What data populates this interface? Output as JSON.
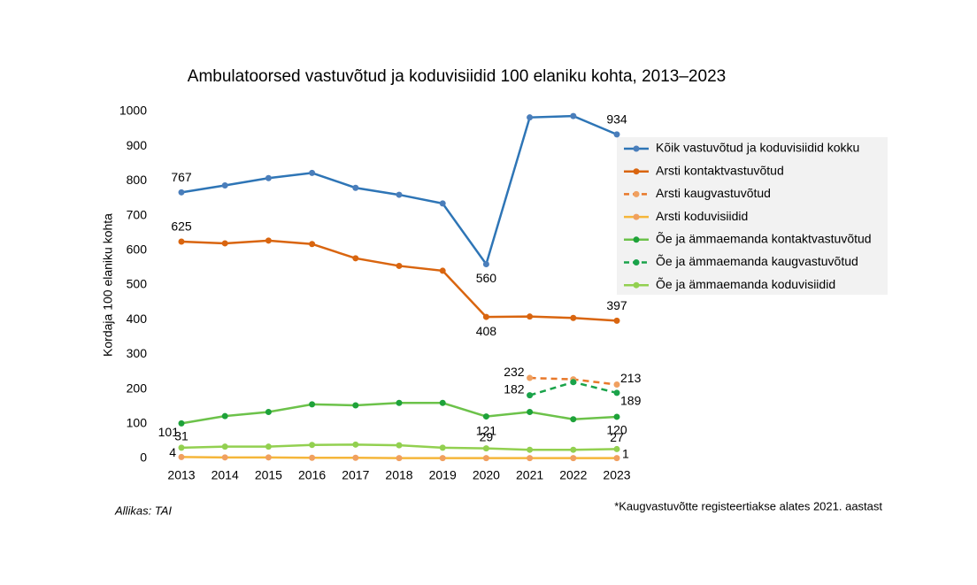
{
  "chart_data": {
    "type": "line",
    "title": "Ambulatoorsed vastuvõtud ja koduvisiidid 100 elaniku kohta, 2013–2023",
    "y_label": "Kordaja 100 elaniku kohta",
    "source": "Allikas: TAI",
    "footnote": "*Kaugvastuvõtte registeertiakse alates 2021. aastast",
    "categories": [
      "2013",
      "2014",
      "2015",
      "2016",
      "2017",
      "2018",
      "2019",
      "2020",
      "2021",
      "2022",
      "2023"
    ],
    "ylim": [
      0,
      1000
    ],
    "yticks": [
      0,
      100,
      200,
      300,
      400,
      500,
      600,
      700,
      800,
      900,
      1000
    ],
    "grid": false,
    "legend": "right",
    "series": [
      {
        "name": "Kõik vastuvõtud ja koduvisiidid kokku",
        "color": "#2e75b6",
        "marker_color": "#4a7ebb",
        "dashed": false,
        "values": [
          767,
          787,
          808,
          823,
          780,
          760,
          735,
          560,
          983,
          987,
          934
        ],
        "labeled_points": [
          0,
          7,
          10
        ]
      },
      {
        "name": "Arsti kontaktvastuvõtud",
        "color": "#d9650f",
        "marker_color": "#d9650f",
        "dashed": false,
        "values": [
          625,
          620,
          628,
          618,
          577,
          555,
          541,
          408,
          409,
          405,
          397
        ],
        "labeled_points": [
          0,
          7,
          10
        ]
      },
      {
        "name": "Arsti kaugvastuvõtud",
        "color": "#e8782a",
        "marker_color": "#f0a060",
        "dashed": true,
        "values": [
          null,
          null,
          null,
          null,
          null,
          null,
          null,
          null,
          232,
          228,
          213
        ],
        "labeled_points": [
          8,
          10
        ]
      },
      {
        "name": "Arsti koduvisiidid",
        "color": "#f5b63a",
        "marker_color": "#f0a060",
        "dashed": false,
        "values": [
          4,
          3,
          3,
          2,
          2,
          1,
          1,
          1,
          1,
          1,
          1
        ],
        "labeled_points": [
          0,
          10
        ]
      },
      {
        "name": "Õe ja ämmaemanda kontaktvastuvõtud",
        "color": "#6cc24a",
        "marker_color": "#1ea23a",
        "dashed": false,
        "values": [
          101,
          122,
          134,
          156,
          153,
          160,
          160,
          121,
          134,
          113,
          120
        ],
        "labeled_points": [
          0,
          7,
          10
        ]
      },
      {
        "name": "Õe ja ämmaemanda kaugvastuvõtud",
        "color": "#1aa34a",
        "marker_color": "#1aa34a",
        "dashed": true,
        "values": [
          null,
          null,
          null,
          null,
          null,
          null,
          null,
          null,
          182,
          220,
          189
        ],
        "labeled_points": [
          8,
          10
        ]
      },
      {
        "name": "Õe ja ämmaemanda koduvisiidid",
        "color": "#92d050",
        "marker_color": "#92d050",
        "dashed": false,
        "values": [
          31,
          34,
          34,
          39,
          40,
          38,
          31,
          29,
          25,
          25,
          27
        ],
        "labeled_points": [
          0,
          7,
          10
        ]
      }
    ]
  }
}
